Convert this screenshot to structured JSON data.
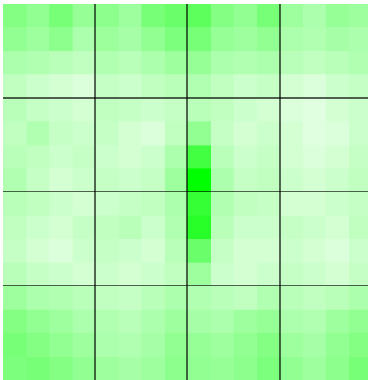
{
  "chart_data": {
    "type": "heatmap",
    "color": "#00ff00",
    "values": [
      [
        45,
        40,
        50,
        38,
        42,
        35,
        50,
        55,
        60,
        45,
        40,
        50,
        35,
        30,
        38,
        35
      ],
      [
        40,
        35,
        42,
        30,
        36,
        32,
        40,
        48,
        50,
        38,
        35,
        40,
        30,
        28,
        32,
        30
      ],
      [
        30,
        28,
        25,
        22,
        28,
        25,
        30,
        35,
        38,
        30,
        28,
        30,
        25,
        22,
        25,
        28
      ],
      [
        22,
        18,
        15,
        12,
        20,
        18,
        22,
        25,
        28,
        22,
        18,
        20,
        15,
        12,
        18,
        20
      ],
      [
        25,
        20,
        18,
        15,
        22,
        20,
        18,
        20,
        25,
        22,
        18,
        15,
        12,
        10,
        15,
        18
      ],
      [
        22,
        28,
        20,
        18,
        20,
        15,
        12,
        22,
        40,
        20,
        15,
        18,
        15,
        10,
        12,
        18
      ],
      [
        25,
        22,
        18,
        20,
        18,
        15,
        18,
        30,
        70,
        25,
        18,
        20,
        15,
        12,
        15,
        20
      ],
      [
        28,
        20,
        15,
        18,
        20,
        18,
        20,
        35,
        95,
        30,
        20,
        22,
        18,
        15,
        18,
        22
      ],
      [
        25,
        22,
        18,
        15,
        18,
        20,
        22,
        30,
        75,
        28,
        22,
        20,
        15,
        15,
        18,
        20
      ],
      [
        22,
        18,
        15,
        20,
        22,
        25,
        18,
        28,
        80,
        25,
        18,
        18,
        20,
        18,
        15,
        22
      ],
      [
        20,
        15,
        12,
        18,
        20,
        18,
        15,
        25,
        55,
        20,
        15,
        15,
        18,
        15,
        12,
        18
      ],
      [
        25,
        20,
        18,
        15,
        18,
        15,
        18,
        22,
        35,
        18,
        15,
        18,
        20,
        18,
        15,
        20
      ],
      [
        35,
        30,
        28,
        25,
        22,
        20,
        25,
        30,
        28,
        25,
        22,
        28,
        25,
        22,
        25,
        30
      ],
      [
        45,
        40,
        35,
        30,
        28,
        25,
        30,
        35,
        32,
        30,
        35,
        38,
        30,
        28,
        35,
        40
      ],
      [
        50,
        45,
        40,
        35,
        30,
        28,
        32,
        40,
        38,
        35,
        40,
        45,
        35,
        32,
        40,
        45
      ],
      [
        48,
        50,
        45,
        40,
        35,
        32,
        35,
        42,
        40,
        38,
        42,
        48,
        40,
        35,
        42,
        50
      ]
    ]
  }
}
